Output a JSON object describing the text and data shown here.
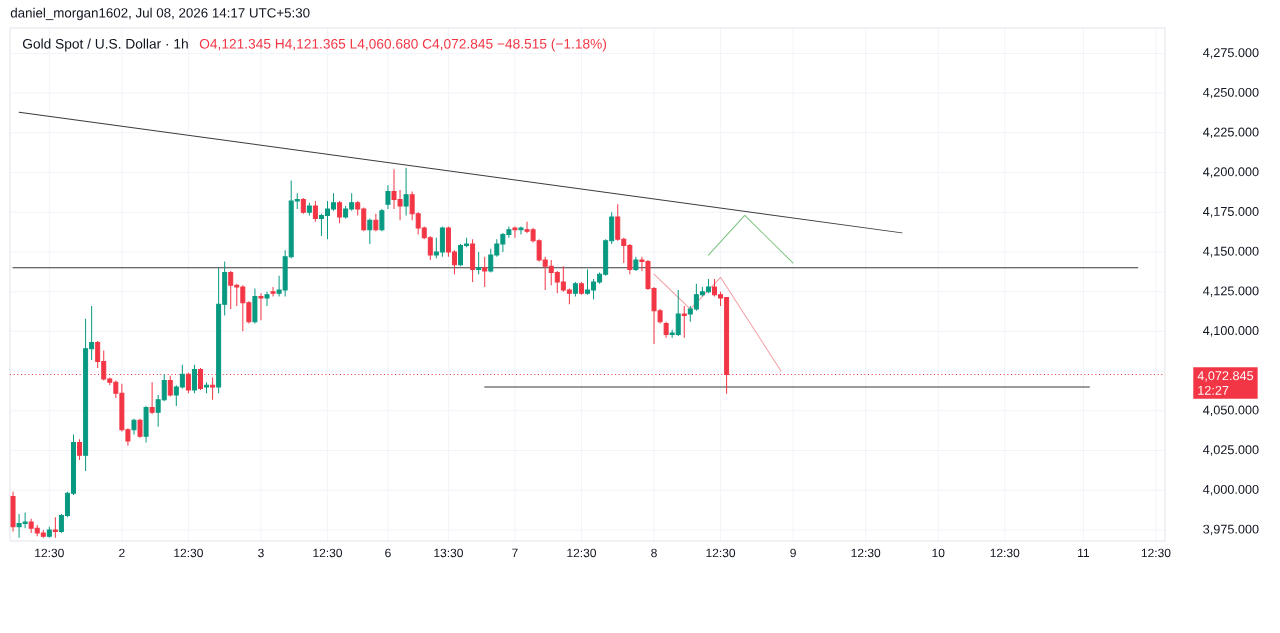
{
  "chart_data": {
    "type": "candlestick",
    "title": "Gold Spot / U.S. Dollar · 1h",
    "subtitle": "O4,121.345 H4,121.365 L4,060.680 C4,072.845 −48.515 (−1.18%)",
    "annotations": [
      "daniel_morgan1602, Jul 08, 2026 14:17 UTC+5:30",
      "12:27"
    ],
    "categories": [
      null,
      null,
      null,
      null,
      null,
      null,
      "12:30",
      null,
      null,
      null,
      null,
      null,
      null,
      null,
      null,
      null,
      null,
      null,
      "2",
      null,
      null,
      null,
      null,
      null,
      null,
      null,
      null,
      null,
      null,
      "12:30",
      null,
      null,
      null,
      null,
      null,
      null,
      null,
      null,
      null,
      null,
      null,
      "3",
      null,
      null,
      null,
      null,
      null,
      null,
      null,
      null,
      null,
      null,
      "12:30",
      null,
      null,
      null,
      null,
      null,
      null,
      null,
      null,
      null,
      "6",
      null,
      null,
      null,
      null,
      null,
      null,
      null,
      null,
      null,
      "13:30",
      null,
      null,
      null,
      null,
      null,
      null,
      null,
      null,
      null,
      null,
      "7",
      null,
      null,
      null,
      null,
      null,
      null,
      null,
      null,
      null,
      null,
      "12:30",
      null,
      null,
      null,
      null,
      null,
      null,
      null,
      null,
      null,
      null,
      null,
      "8",
      null,
      null,
      null,
      null,
      null,
      null,
      null,
      null,
      null,
      null,
      "12:30",
      null,
      null,
      null,
      null,
      null,
      null,
      null,
      null,
      null,
      null,
      null,
      "9",
      null,
      null,
      null,
      null,
      null,
      null,
      null,
      null,
      null,
      null,
      null,
      "12:30",
      null,
      null,
      null,
      null,
      null,
      null,
      null,
      null,
      null,
      null,
      null,
      "10",
      null,
      null,
      null,
      null,
      null,
      null,
      null,
      null,
      null,
      null,
      "12:30",
      null,
      null,
      null,
      null,
      null,
      null,
      null,
      null,
      null,
      null,
      null,
      null,
      "11",
      null,
      null,
      null,
      null,
      null,
      null,
      null,
      null,
      null,
      null,
      null,
      "12:30",
      null
    ],
    "ohlc": [
      [
        3996,
        3999,
        3974,
        3977
      ],
      [
        3977,
        3985,
        3970,
        3979
      ],
      [
        3979,
        3986,
        3976,
        3980
      ],
      [
        3980,
        3982,
        3973,
        3976
      ],
      [
        3976,
        3978,
        3971,
        3973
      ],
      [
        3973,
        3975,
        3970,
        3971
      ],
      [
        3971,
        3977,
        3970,
        3975
      ],
      [
        3975,
        3983,
        3970,
        3974
      ],
      [
        3974,
        3985,
        3973,
        3984
      ],
      [
        3984,
        3999,
        3983,
        3998
      ],
      [
        3998,
        4035,
        3997,
        4030
      ],
      [
        4030,
        4032,
        4019,
        4022
      ],
      [
        4022,
        4108,
        4012,
        4089
      ],
      [
        4089,
        4116,
        4082,
        4093
      ],
      [
        4093,
        4094,
        4077,
        4081
      ],
      [
        4081,
        4088,
        4069,
        4070
      ],
      [
        4070,
        4071,
        4066,
        4068
      ],
      [
        4068,
        4069,
        4058,
        4061
      ],
      [
        4061,
        4067,
        4037,
        4038
      ],
      [
        4038,
        4039,
        4028,
        4031
      ],
      [
        4038,
        4045,
        4035,
        4044
      ],
      [
        4044,
        4045,
        4033,
        4034
      ],
      [
        4034,
        4053,
        4030,
        4052
      ],
      [
        4052,
        4068,
        4048,
        4049
      ],
      [
        4049,
        4060,
        4040,
        4057
      ],
      [
        4057,
        4073,
        4056,
        4069
      ],
      [
        4069,
        4072,
        4059,
        4060
      ],
      [
        4060,
        4066,
        4053,
        4065
      ],
      [
        4065,
        4079,
        4064,
        4073
      ],
      [
        4073,
        4074,
        4061,
        4063
      ],
      [
        4063,
        4079,
        4061,
        4076
      ],
      [
        4076,
        4077,
        4063,
        4064
      ],
      [
        4065,
        4068,
        4061,
        4066
      ],
      [
        4066,
        4071,
        4057,
        4065
      ],
      [
        4065,
        4140,
        4061,
        4117
      ],
      [
        4117,
        4144,
        4110,
        4137
      ],
      [
        4137,
        4138,
        4114,
        4129
      ],
      [
        4129,
        4130,
        4116,
        4128
      ],
      [
        4128,
        4129,
        4100,
        4118
      ],
      [
        4118,
        4119,
        4105,
        4106
      ],
      [
        4106,
        4127,
        4105,
        4122
      ],
      [
        4122,
        4124,
        4107,
        4121
      ],
      [
        4121,
        4125,
        4116,
        4123
      ],
      [
        4125,
        4128,
        4122,
        4124
      ],
      [
        4124,
        4135,
        4122,
        4126
      ],
      [
        4126,
        4151,
        4122,
        4147
      ],
      [
        4147,
        4195,
        4146,
        4182
      ],
      [
        4182,
        4187,
        4177,
        4183
      ],
      [
        4183,
        4184,
        4174,
        4175
      ],
      [
        4175,
        4181,
        4173,
        4179
      ],
      [
        4179,
        4182,
        4169,
        4171
      ],
      [
        4171,
        4174,
        4160,
        4173
      ],
      [
        4173,
        4182,
        4158,
        4177
      ],
      [
        4177,
        4187,
        4176,
        4181
      ],
      [
        4181,
        4182,
        4168,
        4172
      ],
      [
        4172,
        4179,
        4171,
        4177
      ],
      [
        4177,
        4187,
        4176,
        4181
      ],
      [
        4181,
        4182,
        4173,
        4177
      ],
      [
        4177,
        4178,
        4163,
        4164
      ],
      [
        4164,
        4171,
        4155,
        4170
      ],
      [
        4170,
        4174,
        4163,
        4164
      ],
      [
        4164,
        4177,
        4163,
        4176
      ],
      [
        4180,
        4192,
        4177,
        4188
      ],
      [
        4188,
        4202,
        4177,
        4183
      ],
      [
        4183,
        4189,
        4170,
        4179
      ],
      [
        4179,
        4203,
        4173,
        4186
      ],
      [
        4186,
        4188,
        4170,
        4174
      ],
      [
        4174,
        4175,
        4161,
        4165
      ],
      [
        4165,
        4166,
        4158,
        4159
      ],
      [
        4159,
        4160,
        4145,
        4148
      ],
      [
        4148,
        4159,
        4146,
        4150
      ],
      [
        4150,
        4166,
        4147,
        4165
      ],
      [
        4165,
        4166,
        4147,
        4150
      ],
      [
        4150,
        4151,
        4136,
        4142
      ],
      [
        4142,
        4155,
        4141,
        4154
      ],
      [
        4154,
        4159,
        4153,
        4155
      ],
      [
        4155,
        4158,
        4131,
        4139
      ],
      [
        4139,
        4150,
        4136,
        4140
      ],
      [
        4140,
        4147,
        4128,
        4138
      ],
      [
        4138,
        4152,
        4137,
        4148
      ],
      [
        4148,
        4158,
        4147,
        4155
      ],
      [
        4155,
        4162,
        4150,
        4161
      ],
      [
        4161,
        4166,
        4159,
        4164
      ],
      [
        4165,
        4166,
        4159,
        4164
      ],
      [
        4164,
        4166,
        4161,
        4165
      ],
      [
        4164,
        4169,
        4162,
        4163
      ],
      [
        4164,
        4165,
        4156,
        4157
      ],
      [
        4157,
        4158,
        4144,
        4145
      ],
      [
        4145,
        4147,
        4126,
        4141
      ],
      [
        4141,
        4145,
        4129,
        4137
      ],
      [
        4137,
        4138,
        4124,
        4131
      ],
      [
        4131,
        4141,
        4125,
        4126
      ],
      [
        4126,
        4127,
        4117,
        4124
      ],
      [
        4124,
        4131,
        4122,
        4130
      ],
      [
        4130,
        4131,
        4123,
        4124
      ],
      [
        4124,
        4139,
        4123,
        4126
      ],
      [
        4126,
        4133,
        4120,
        4131
      ],
      [
        4131,
        4137,
        4130,
        4136
      ],
      [
        4136,
        4158,
        4135,
        4157
      ],
      [
        4157,
        4175,
        4155,
        4172
      ],
      [
        4172,
        4180,
        4157,
        4158
      ],
      [
        4158,
        4159,
        4143,
        4154
      ],
      [
        4154,
        4155,
        4136,
        4139
      ],
      [
        4139,
        4147,
        4138,
        4145
      ],
      [
        4145,
        4147,
        4138,
        4144
      ],
      [
        4144,
        4145,
        4126,
        4127
      ],
      [
        4127,
        4128,
        4092,
        4113
      ],
      [
        4113,
        4114,
        4105,
        4106
      ],
      [
        4105,
        4106,
        4096,
        4098
      ],
      [
        4098,
        4101,
        4096,
        4099
      ],
      [
        4098,
        4126,
        4097,
        4111
      ],
      [
        4111,
        4116,
        4096,
        4110
      ],
      [
        4111,
        4116,
        4106,
        4114
      ],
      [
        4114,
        4130,
        4113,
        4123
      ],
      [
        4123,
        4128,
        4122,
        4125
      ],
      [
        4125,
        4133,
        4124,
        4128
      ],
      [
        4128,
        4133,
        4122,
        4123
      ],
      [
        4123,
        4125,
        4116,
        4121
      ],
      [
        4121.345,
        4121.365,
        4060.68,
        4072.845
      ],
      null,
      null,
      null,
      null,
      null,
      null,
      null,
      null,
      null,
      null,
      null,
      null,
      null,
      null,
      null,
      null,
      null,
      null,
      null,
      null,
      null,
      null,
      null,
      null,
      null,
      null,
      null,
      null,
      null,
      null,
      null,
      null,
      null,
      null,
      null,
      null,
      null,
      null,
      null,
      null,
      null,
      null,
      null,
      null,
      null,
      null,
      null,
      null,
      null,
      null,
      null,
      null,
      null,
      null,
      null,
      null,
      null,
      null,
      null,
      null,
      null,
      null,
      null,
      null,
      null,
      null,
      null,
      null,
      null,
      null,
      null,
      null
    ],
    "colors": [
      "#f23645",
      "#089981",
      "#089981",
      "#f23645",
      "#f23645",
      "#f23645",
      "#089981",
      "#f23645",
      "#089981",
      "#089981",
      "#089981",
      "#f23645",
      "#089981",
      "#089981",
      "#f23645",
      "#f23645",
      "#f23645",
      "#f23645",
      "#f23645",
      "#f23645",
      "#089981",
      "#f23645",
      "#089981",
      "#f23645",
      "#089981",
      "#089981",
      "#f23645",
      "#089981",
      "#089981",
      "#f23645",
      "#089981",
      "#f23645",
      "#089981",
      "#f23645",
      "#089981",
      "#089981",
      "#f23645",
      "#f23645",
      "#f23645",
      "#f23645",
      "#089981",
      "#f23645",
      "#089981",
      "#f23645",
      "#089981",
      "#089981",
      "#089981",
      "#089981",
      "#f23645",
      "#089981",
      "#f23645",
      "#089981",
      "#089981",
      "#089981",
      "#f23645",
      "#089981",
      "#089981",
      "#f23645",
      "#f23645",
      "#089981",
      "#f23645",
      "#089981",
      "#089981",
      "#f23645",
      "#f23645",
      "#089981",
      "#f23645",
      "#f23645",
      "#f23645",
      "#f23645",
      "#089981",
      "#089981",
      "#f23645",
      "#f23645",
      "#089981",
      "#089981",
      "#f23645",
      "#089981",
      "#f23645",
      "#089981",
      "#089981",
      "#089981",
      "#089981",
      "#f23645",
      "#089981",
      "#f23645",
      "#f23645",
      "#f23645",
      "#f23645",
      "#f23645",
      "#f23645",
      "#f23645",
      "#f23645",
      "#089981",
      "#f23645",
      "#089981",
      "#089981",
      "#089981",
      "#089981",
      "#089981",
      "#f23645",
      "#f23645",
      "#f23645",
      "#089981",
      "#f23645",
      "#f23645",
      "#f23645",
      "#f23645",
      "#f23645",
      "#089981",
      "#089981",
      "#f23645",
      "#089981",
      "#089981",
      "#089981",
      "#089981",
      "#f23645",
      "#f23645",
      "#f23645",
      null,
      null,
      null,
      null,
      null,
      null,
      null,
      null,
      null,
      null,
      null,
      null,
      null,
      null,
      null,
      null,
      null,
      null,
      null,
      null,
      null,
      null,
      null,
      null,
      null,
      null,
      null,
      null,
      null,
      null,
      null,
      null,
      null,
      null,
      null,
      null,
      null,
      null,
      null,
      null,
      null,
      null,
      null,
      null,
      null,
      null,
      null,
      null,
      null,
      null,
      null,
      null,
      null,
      null,
      null,
      null,
      null,
      null,
      null,
      null,
      null,
      null,
      null,
      null,
      null,
      null,
      null,
      null,
      null,
      null,
      null,
      null
    ],
    "series": [
      {
        "type": "line",
        "color": "#3b3b3b",
        "values": [
          null,
          4238,
          null,
          null,
          null,
          null,
          null,
          null,
          null,
          null,
          null,
          null,
          null,
          null,
          null,
          null,
          null,
          null,
          null,
          null,
          null,
          null,
          null,
          null,
          null,
          null,
          null,
          null,
          null,
          null,
          null,
          null,
          null,
          null,
          null,
          null,
          null,
          null,
          null,
          null,
          null,
          null,
          null,
          null,
          null,
          null,
          null,
          null,
          null,
          null,
          null,
          null,
          null,
          null,
          null,
          null,
          null,
          null,
          null,
          null,
          null,
          null,
          null,
          null,
          null,
          null,
          null,
          null,
          null,
          null,
          null,
          null,
          null,
          null,
          null,
          null,
          null,
          null,
          null,
          null,
          null,
          null,
          null,
          null,
          null,
          null,
          null,
          null,
          null,
          null,
          null,
          null,
          null,
          null,
          null,
          null,
          null,
          null,
          null,
          null,
          null,
          null,
          null,
          null,
          null,
          null,
          null,
          null,
          null,
          null,
          null,
          null,
          null,
          null,
          null,
          null,
          null,
          null,
          null,
          null,
          null,
          null,
          null,
          null,
          null,
          null,
          null,
          null,
          null,
          null,
          null,
          null,
          null,
          null,
          null,
          null,
          null,
          null,
          null,
          null,
          null,
          null,
          null,
          null,
          null,
          null,
          null,
          4162,
          null,
          null,
          null,
          null,
          null,
          null,
          null,
          null,
          null,
          null,
          null,
          null,
          null,
          null,
          null,
          null,
          null,
          null,
          null,
          null,
          null,
          null,
          null,
          null,
          null,
          null,
          null,
          null,
          null,
          null,
          null,
          null,
          null,
          null,
          null,
          null,
          null,
          null,
          null,
          null,
          null,
          null,
          null
        ]
      },
      {
        "type": "line",
        "color": "#3b3b3b",
        "values": [
          4140,
          null,
          null,
          null,
          null,
          null,
          null,
          null,
          null,
          null,
          null,
          null,
          null,
          null,
          null,
          null,
          null,
          null,
          null,
          null,
          null,
          null,
          null,
          null,
          null,
          null,
          null,
          null,
          null,
          null,
          null,
          null,
          null,
          null,
          null,
          null,
          null,
          null,
          null,
          null,
          null,
          null,
          null,
          null,
          null,
          null,
          null,
          null,
          null,
          null,
          null,
          null,
          null,
          null,
          null,
          null,
          null,
          null,
          null,
          null,
          null,
          null,
          null,
          null,
          null,
          null,
          null,
          null,
          null,
          null,
          null,
          null,
          null,
          null,
          null,
          null,
          null,
          null,
          null,
          null,
          null,
          null,
          null,
          null,
          null,
          null,
          null,
          null,
          null,
          null,
          null,
          null,
          null,
          null,
          null,
          null,
          null,
          null,
          null,
          null,
          null,
          null,
          null,
          null,
          null,
          null,
          null,
          null,
          null,
          null,
          null,
          null,
          null,
          null,
          null,
          null,
          null,
          null,
          null,
          null,
          null,
          null,
          null,
          null,
          null,
          null,
          null,
          null,
          null,
          null,
          null,
          null,
          null,
          null,
          null,
          null,
          null,
          null,
          null,
          null,
          null,
          null,
          null,
          null,
          null,
          null,
          null,
          null,
          null,
          null,
          null,
          null,
          null,
          null,
          null,
          null,
          null,
          null,
          null,
          null,
          null,
          null,
          null,
          null,
          null,
          null,
          null,
          null,
          null,
          null,
          null,
          null,
          null,
          null,
          null,
          null,
          null,
          null,
          null,
          null,
          null,
          null,
          null,
          null,
          null,
          null,
          4140,
          null,
          null,
          null,
          null
        ]
      },
      {
        "type": "line",
        "color": "#3b3b3b",
        "values": [
          null,
          null,
          null,
          null,
          null,
          null,
          null,
          null,
          null,
          null,
          null,
          null,
          null,
          null,
          null,
          null,
          null,
          null,
          null,
          null,
          null,
          null,
          null,
          null,
          null,
          null,
          null,
          null,
          null,
          null,
          null,
          null,
          null,
          null,
          null,
          null,
          null,
          null,
          null,
          null,
          null,
          null,
          null,
          null,
          null,
          null,
          null,
          null,
          null,
          null,
          null,
          null,
          null,
          null,
          null,
          null,
          null,
          null,
          null,
          null,
          null,
          null,
          null,
          null,
          null,
          null,
          null,
          null,
          null,
          null,
          null,
          null,
          null,
          null,
          null,
          null,
          null,
          null,
          4065,
          null,
          null,
          null,
          null,
          null,
          null,
          null,
          null,
          null,
          null,
          null,
          null,
          null,
          null,
          null,
          null,
          null,
          null,
          null,
          null,
          null,
          null,
          null,
          null,
          null,
          null,
          null,
          null,
          null,
          null,
          null,
          null,
          null,
          null,
          null,
          null,
          null,
          null,
          null,
          null,
          null,
          null,
          null,
          null,
          null,
          null,
          null,
          null,
          null,
          null,
          null,
          null,
          null,
          null,
          null,
          null,
          null,
          null,
          null,
          null,
          null,
          null,
          null,
          null,
          null,
          null,
          null,
          null,
          null,
          null,
          null,
          null,
          null,
          null,
          null,
          null,
          null,
          null,
          null,
          null,
          null,
          null,
          null,
          null,
          null,
          null,
          null,
          null,
          null,
          null,
          null,
          null,
          null,
          null,
          null,
          null,
          null,
          null,
          null,
          4065,
          null,
          null,
          null,
          null,
          null,
          null,
          null,
          null,
          null,
          null,
          null,
          null
        ]
      },
      {
        "type": "line",
        "color": "#7cc47f",
        "values": [
          null,
          null,
          null,
          null,
          null,
          null,
          null,
          null,
          null,
          null,
          null,
          null,
          null,
          null,
          null,
          null,
          null,
          null,
          null,
          null,
          null,
          null,
          null,
          null,
          null,
          null,
          null,
          null,
          null,
          null,
          null,
          null,
          null,
          null,
          null,
          null,
          null,
          null,
          null,
          null,
          null,
          null,
          null,
          null,
          null,
          null,
          null,
          null,
          null,
          null,
          null,
          null,
          null,
          null,
          null,
          null,
          null,
          null,
          null,
          null,
          null,
          null,
          null,
          null,
          null,
          null,
          null,
          null,
          null,
          null,
          null,
          null,
          null,
          null,
          null,
          null,
          null,
          null,
          null,
          null,
          null,
          null,
          null,
          null,
          null,
          null,
          null,
          null,
          null,
          null,
          null,
          null,
          null,
          null,
          null,
          null,
          null,
          null,
          null,
          null,
          null,
          null,
          null,
          null,
          null,
          null,
          null,
          null,
          null,
          null,
          null,
          null,
          null,
          null,
          null,
          4148,
          null,
          null,
          null,
          null,
          null,
          4173,
          null,
          null,
          null,
          null,
          null,
          null,
          null,
          4143,
          null,
          null,
          null,
          null,
          null,
          null,
          null,
          null,
          null,
          null,
          null,
          null,
          null,
          null,
          null,
          null,
          null,
          null,
          null,
          null,
          null,
          null,
          null,
          null,
          null,
          null,
          null,
          null,
          null,
          null,
          null,
          null,
          null,
          null,
          null,
          null,
          null,
          null,
          null,
          null,
          null,
          null,
          null,
          null,
          null,
          null,
          null,
          null,
          null,
          null,
          null,
          null,
          null,
          null,
          null,
          null,
          null,
          null,
          null,
          null,
          null
        ]
      },
      {
        "type": "line",
        "color": "#f49ca1",
        "values": [
          null,
          null,
          null,
          null,
          null,
          null,
          null,
          null,
          null,
          null,
          null,
          null,
          null,
          null,
          null,
          null,
          null,
          null,
          null,
          null,
          null,
          null,
          null,
          null,
          null,
          null,
          null,
          null,
          null,
          null,
          null,
          null,
          null,
          null,
          null,
          null,
          null,
          null,
          null,
          null,
          null,
          null,
          null,
          null,
          null,
          null,
          null,
          null,
          null,
          null,
          null,
          null,
          null,
          null,
          null,
          null,
          null,
          null,
          null,
          null,
          null,
          null,
          null,
          null,
          null,
          null,
          null,
          null,
          null,
          null,
          null,
          null,
          null,
          null,
          null,
          null,
          null,
          null,
          null,
          null,
          null,
          null,
          null,
          null,
          null,
          null,
          null,
          null,
          null,
          null,
          null,
          null,
          null,
          null,
          null,
          null,
          null,
          null,
          null,
          null,
          null,
          null,
          null,
          null,
          null,
          null,
          4136,
          null,
          null,
          null,
          null,
          null,
          4114,
          null,
          null,
          null,
          null,
          4134,
          null,
          null,
          null,
          null,
          null,
          null,
          null,
          null,
          null,
          4075,
          null,
          null,
          null,
          null,
          null,
          null,
          null,
          null,
          null,
          null,
          null,
          null,
          null,
          null,
          null,
          null,
          null,
          null,
          null,
          null,
          null,
          null,
          null,
          null,
          null,
          null,
          null,
          null,
          null,
          null,
          null,
          null,
          null,
          null,
          null,
          null,
          null,
          null,
          null,
          null,
          null,
          null,
          null,
          null,
          null,
          null,
          null,
          null,
          null,
          null,
          null,
          null,
          null,
          null,
          null,
          null,
          null,
          null,
          null,
          null,
          null,
          null,
          null
        ]
      }
    ],
    "ref_lines": [
      {
        "axis": "y",
        "value": 4072.845,
        "label": "4,072.845",
        "color": "#f23645",
        "line_style": "dotted"
      }
    ],
    "ylim": [
      3968,
      4291
    ],
    "yticks": [
      {
        "value": 3975,
        "label": "3,975.000"
      },
      {
        "value": 4000,
        "label": "4,000.000"
      },
      {
        "value": 4025,
        "label": "4,025.000"
      },
      {
        "value": 4050,
        "label": "4,050.000"
      },
      {
        "value": 4075,
        "label": null
      },
      {
        "value": 4100,
        "label": "4,100.000"
      },
      {
        "value": 4125,
        "label": "4,125.000"
      },
      {
        "value": 4150,
        "label": "4,150.000"
      },
      {
        "value": 4175,
        "label": "4,175.000"
      },
      {
        "value": 4200,
        "label": "4,200.000"
      },
      {
        "value": 4225,
        "label": "4,225.000"
      },
      {
        "value": 4250,
        "label": "4,250.000"
      },
      {
        "value": 4275,
        "label": "4,275.000"
      }
    ],
    "grid": true
  }
}
